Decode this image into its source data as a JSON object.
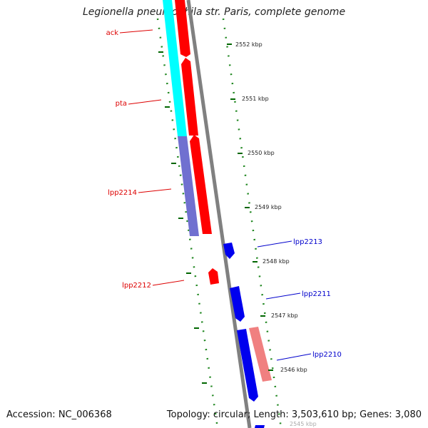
{
  "title": "Legionella pneumophila str. Paris, complete genome",
  "footer": {
    "accession": "Accession: NC_006368",
    "summary": "Topology: circular; Length: 3,503,610 bp; Genes: 3,080"
  },
  "colors": {
    "forward_cds": "#ff0000",
    "reverse_cds": "#0000ff",
    "cyan_feature": "#00ffff",
    "purple_feature": "#7070d0",
    "pink_feature": "#f08080",
    "backbone": "#808080",
    "tick": "#007000",
    "forward_label": "#dd0000",
    "reverse_label": "#0000cc"
  },
  "scale_ticks": [
    {
      "kbp": 2552,
      "label": "2552 kbp"
    },
    {
      "kbp": 2551,
      "label": "2551 kbp"
    },
    {
      "kbp": 2550,
      "label": "2550 kbp"
    },
    {
      "kbp": 2549,
      "label": "2549 kbp"
    },
    {
      "kbp": 2548,
      "label": "2548 kbp"
    },
    {
      "kbp": 2547,
      "label": "2547 kbp"
    },
    {
      "kbp": 2546,
      "label": "2546 kbp"
    },
    {
      "kbp": 2545,
      "label": "2545 kbp"
    }
  ],
  "gene_labels": [
    {
      "name": "ack",
      "strand": "forward"
    },
    {
      "name": "pta",
      "strand": "forward"
    },
    {
      "name": "lpp2214",
      "strand": "forward"
    },
    {
      "name": "lpp2212",
      "strand": "forward"
    },
    {
      "name": "lpp2213",
      "strand": "reverse"
    },
    {
      "name": "lpp2211",
      "strand": "reverse"
    },
    {
      "name": "lpp2210",
      "strand": "reverse"
    }
  ]
}
